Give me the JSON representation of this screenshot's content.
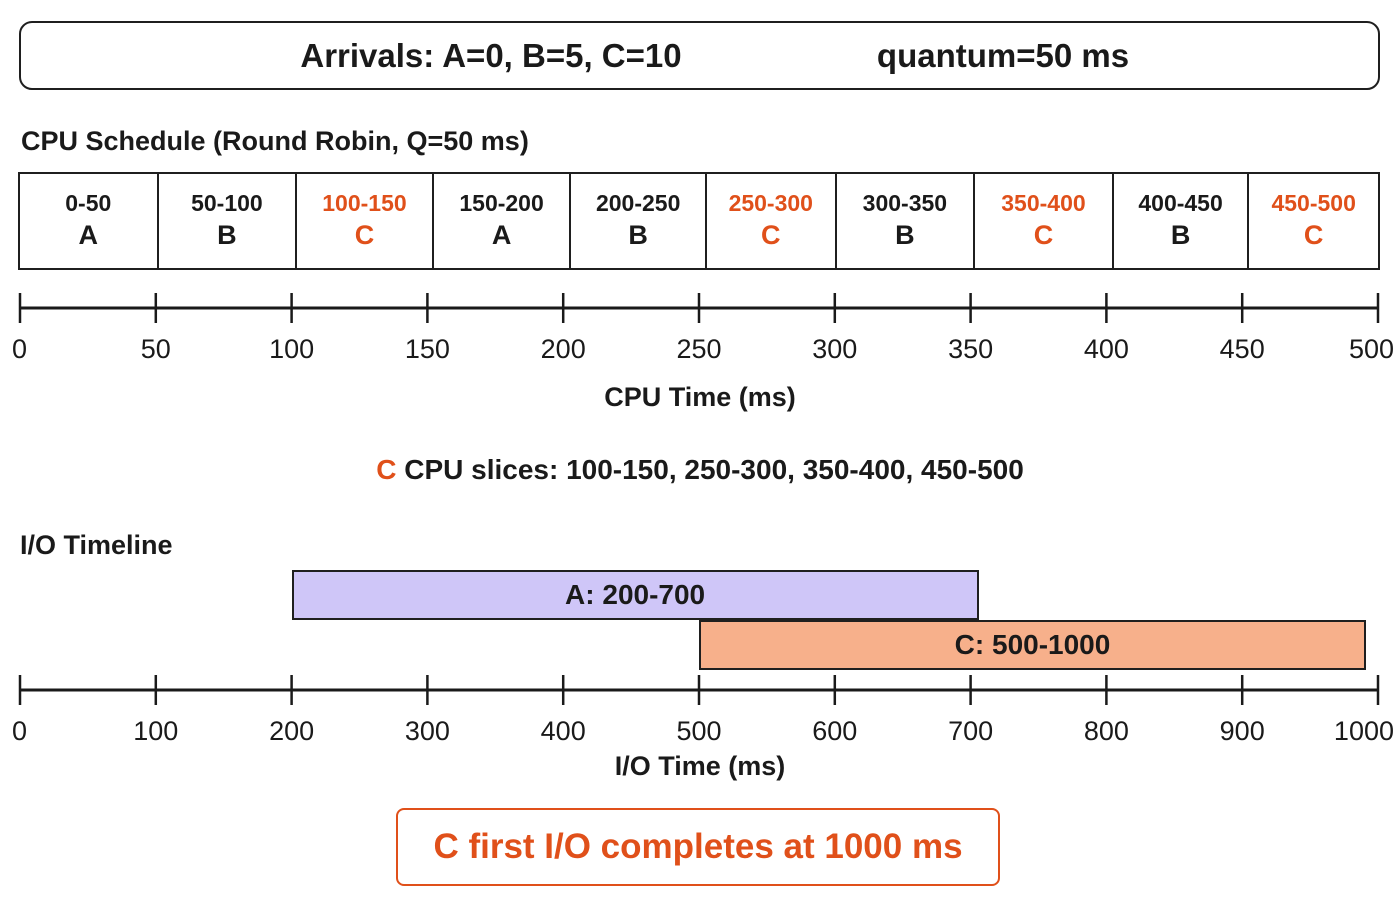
{
  "header": {
    "arrivals": "Arrivals:  A=0, B=5, C=10",
    "quantum": "quantum=50 ms"
  },
  "cpu_schedule": {
    "title": "CPU Schedule (Round Robin, Q=50 ms)",
    "slots": [
      {
        "range": "0-50",
        "proc": "A",
        "highlight": false
      },
      {
        "range": "50-100",
        "proc": "B",
        "highlight": false
      },
      {
        "range": "100-150",
        "proc": "C",
        "highlight": true
      },
      {
        "range": "150-200",
        "proc": "A",
        "highlight": false
      },
      {
        "range": "200-250",
        "proc": "B",
        "highlight": false
      },
      {
        "range": "250-300",
        "proc": "C",
        "highlight": true
      },
      {
        "range": "300-350",
        "proc": "B",
        "highlight": false
      },
      {
        "range": "350-400",
        "proc": "C",
        "highlight": true
      },
      {
        "range": "400-450",
        "proc": "B",
        "highlight": false
      },
      {
        "range": "450-500",
        "proc": "C",
        "highlight": true
      }
    ],
    "axis": {
      "min": 0,
      "max": 500,
      "ticks": [
        "0",
        "50",
        "100",
        "150",
        "200",
        "250",
        "300",
        "350",
        "400",
        "450",
        "500"
      ],
      "title": "CPU Time (ms)"
    }
  },
  "slices_note": {
    "proc": "C",
    "text": " CPU slices:  100-150,  250-300,  350-400,  450-500"
  },
  "io_timeline": {
    "title": "I/O Timeline",
    "bars": [
      {
        "label": "A:  200-700",
        "start": 200,
        "end": 700,
        "color": "#cfc6f8"
      },
      {
        "label": "C:  500-1000",
        "start": 500,
        "end": 1000,
        "color": "#f7b08b"
      }
    ],
    "axis": {
      "min": 0,
      "max": 1000,
      "ticks": [
        "0",
        "100",
        "200",
        "300",
        "400",
        "500",
        "600",
        "700",
        "800",
        "900",
        "1000"
      ],
      "title": "I/O Time (ms)"
    }
  },
  "result": "C first I/O completes at 1000 ms",
  "colors": {
    "accent": "#e0501a",
    "ink": "#1a1a1a",
    "io_a": "#cfc6f8",
    "io_c": "#f7b08b"
  }
}
